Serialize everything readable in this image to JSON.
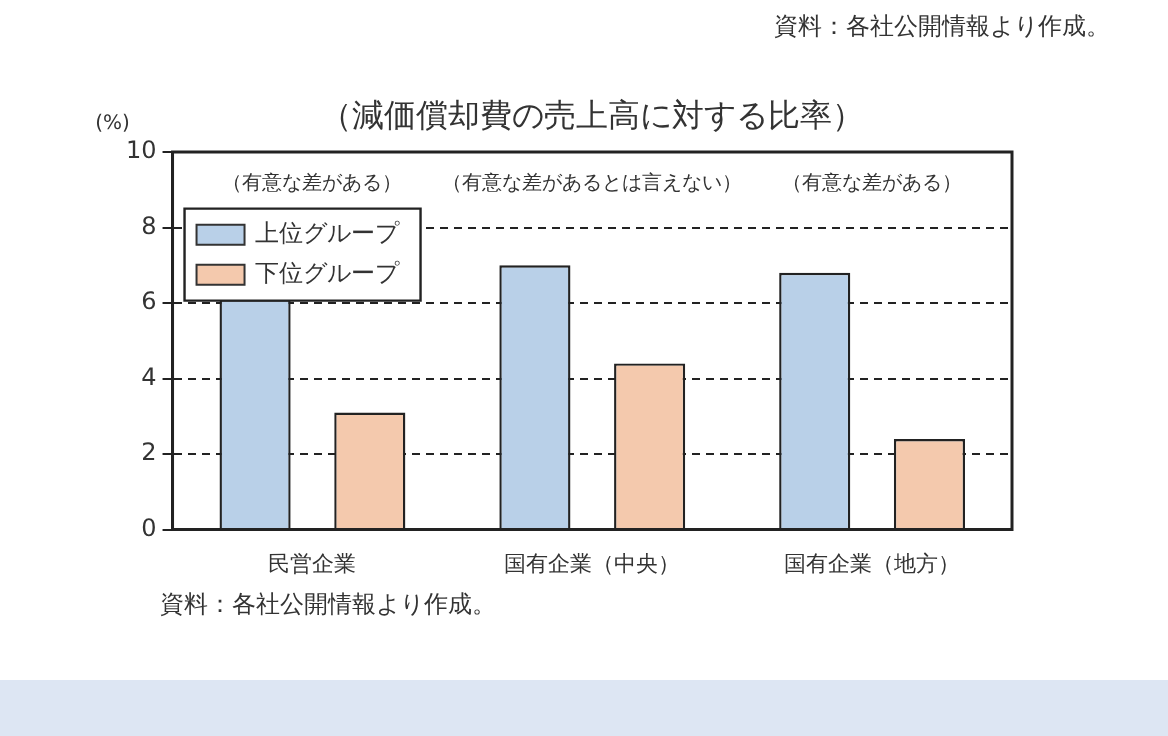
{
  "chart_data": {
    "type": "bar",
    "title": "（減価償却費の売上高に対する比率）",
    "ylabel": "(%)",
    "categories": [
      "民営企業",
      "国有企業（中央）",
      "国有企業（地方）"
    ],
    "series": [
      {
        "name": "上位グループ",
        "color": "#b9d0e8",
        "values": [
          6.1,
          7.0,
          6.8
        ]
      },
      {
        "name": "下位グループ",
        "color": "#f4c9ad",
        "values": [
          3.1,
          4.4,
          2.4
        ]
      }
    ],
    "ylim": [
      0,
      10
    ],
    "yticks": [
      0,
      2,
      4,
      6,
      8,
      10
    ],
    "grid": "y",
    "legend": "top left",
    "annotations": [
      "（有意な差がある）",
      "（有意な差があるとは言えない）",
      "（有意な差がある）",
      "資料：各社公開情報より作成。",
      "資料：各社公開情報より作成。"
    ]
  }
}
